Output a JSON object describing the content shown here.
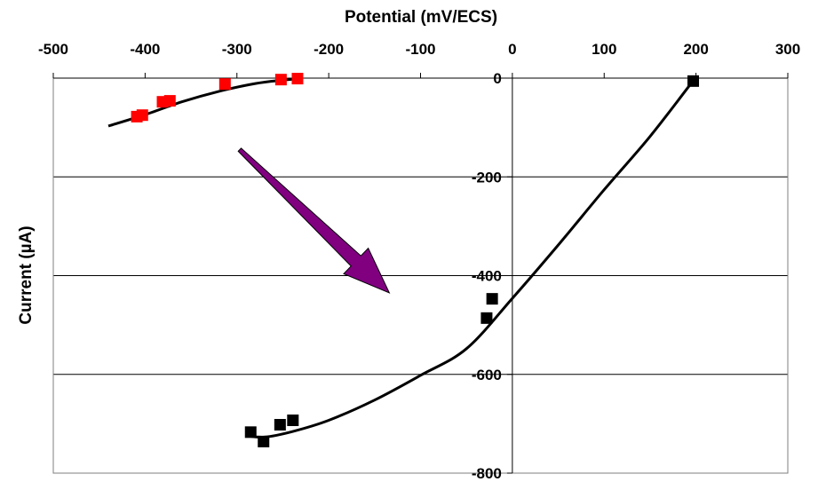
{
  "chart_data": {
    "type": "scatter",
    "title": "",
    "xlabel": "Potential (mV/ECS)",
    "ylabel": "Current (µA)",
    "xlim": [
      -500,
      300
    ],
    "ylim": [
      -800,
      0
    ],
    "x_ticks": [
      "-500",
      "-400",
      "-300",
      "-200",
      "-100",
      "0",
      "100",
      "200",
      "300"
    ],
    "y_ticks": [
      "0",
      "-200",
      "-400",
      "-600",
      "-800"
    ],
    "grid": "horizontal",
    "legend": "none",
    "series": [
      {
        "color": "#ff0000",
        "marker": "square",
        "points": [
          [
            -409,
            -78
          ],
          [
            -403,
            -75
          ],
          [
            -381,
            -48
          ],
          [
            -373,
            -46
          ],
          [
            -313,
            -12
          ],
          [
            -252,
            -3
          ],
          [
            -234,
            -1
          ]
        ]
      },
      {
        "color": "#000000",
        "marker": "square",
        "points": [
          [
            -285,
            -717
          ],
          [
            -271,
            -736
          ],
          [
            -253,
            -702
          ],
          [
            -239,
            -693
          ],
          [
            -28,
            -486
          ],
          [
            -22,
            -447
          ],
          [
            197,
            -6
          ]
        ]
      }
    ],
    "fit_curves": [
      {
        "color": "#000000",
        "points": [
          [
            -440,
            -97
          ],
          [
            -400,
            -74
          ],
          [
            -360,
            -48
          ],
          [
            -320,
            -27
          ],
          [
            -280,
            -11
          ],
          [
            -250,
            -4
          ],
          [
            -232,
            -1
          ]
        ]
      },
      {
        "color": "#000000",
        "points": [
          [
            -290,
            -724
          ],
          [
            -270,
            -727
          ],
          [
            -240,
            -716
          ],
          [
            -200,
            -693
          ],
          [
            -150,
            -652
          ],
          [
            -100,
            -602
          ],
          [
            -50,
            -548
          ],
          [
            0,
            -446
          ],
          [
            50,
            -338
          ],
          [
            100,
            -226
          ],
          [
            150,
            -118
          ],
          [
            197,
            -5
          ]
        ]
      }
    ],
    "annotations": [
      {
        "type": "arrow",
        "color": "#800080",
        "from": [
          -297,
          -145
        ],
        "to": [
          -134,
          -435
        ]
      }
    ]
  }
}
